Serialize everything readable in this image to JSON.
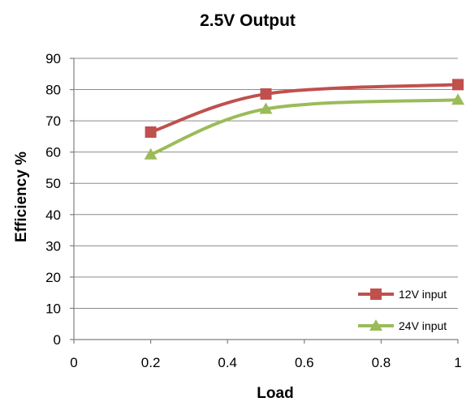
{
  "chart_data": {
    "type": "line",
    "title": "2.5V Output",
    "xlabel": "Load",
    "ylabel": "Efficiency %",
    "xlim": [
      0,
      1
    ],
    "ylim": [
      0,
      90
    ],
    "xticks": [
      0,
      0.2,
      0.4,
      0.6,
      0.8,
      1
    ],
    "xtick_labels": [
      "0",
      "0.2",
      "0.4",
      "0.6",
      "0.8",
      "1"
    ],
    "yticks": [
      0,
      10,
      20,
      30,
      40,
      50,
      60,
      70,
      80,
      90
    ],
    "ytick_labels": [
      "0",
      "10",
      "20",
      "30",
      "40",
      "50",
      "60",
      "70",
      "80",
      "90"
    ],
    "grid": "horizontal",
    "legend_position": "bottom-right",
    "series": [
      {
        "name": "12V input",
        "color": "#c0504d",
        "marker": "square",
        "x": [
          0.2,
          0.5,
          1.0
        ],
        "y": [
          66.4,
          78.6,
          81.6
        ]
      },
      {
        "name": "24V input",
        "color": "#9bbb59",
        "marker": "triangle",
        "x": [
          0.2,
          0.5,
          1.0
        ],
        "y": [
          59.2,
          73.8,
          76.7
        ]
      }
    ]
  }
}
